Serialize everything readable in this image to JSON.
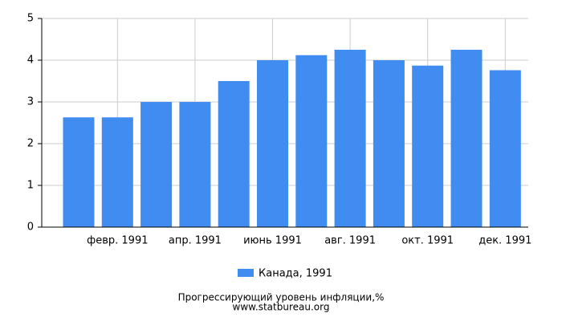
{
  "chart_data": {
    "type": "bar",
    "categories": [
      null,
      "февр. 1991",
      null,
      "апр. 1991",
      null,
      "июнь 1991",
      null,
      "авг. 1991",
      null,
      "окт. 1991",
      null,
      "дек. 1991"
    ],
    "series": [
      {
        "name": "Канада, 1991",
        "color": "#418cf0",
        "values": [
          2.63,
          2.63,
          3.0,
          3.0,
          3.5,
          4.0,
          4.12,
          4.25,
          4.0,
          3.87,
          4.25,
          3.76
        ]
      }
    ],
    "ylim": [
      0,
      5
    ],
    "yticks": [
      0,
      1,
      2,
      3,
      4,
      5
    ],
    "grid": true,
    "footer": "Прогрессирующий уровень инфляции,%",
    "source": "www.statbureau.org"
  }
}
